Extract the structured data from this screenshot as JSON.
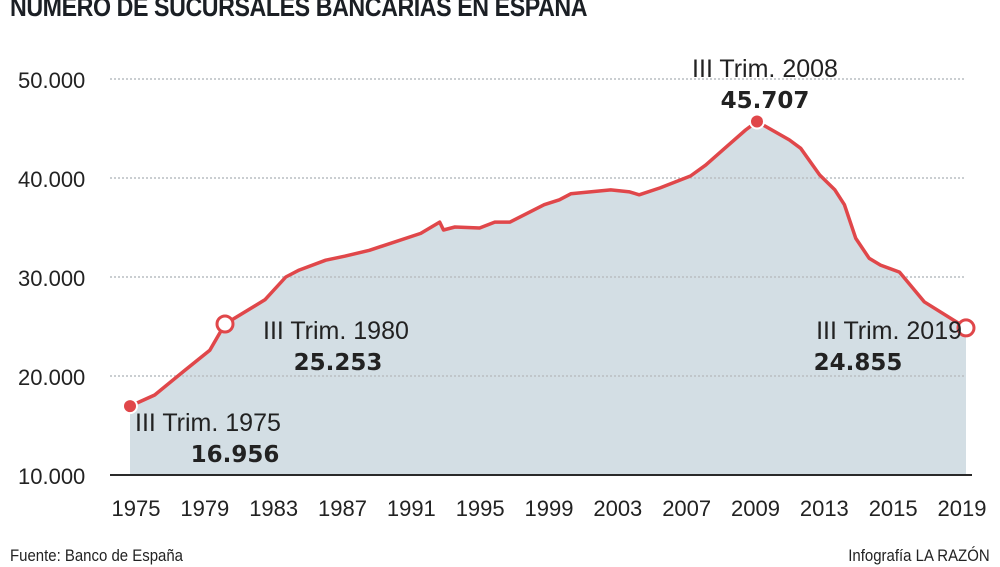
{
  "chart_data": {
    "type": "area",
    "title": "NÚMERO DE SUCURSALES BANCARIAS EN ESPAÑA",
    "xlabel": "",
    "ylabel": "",
    "ylim": [
      10000,
      50000
    ],
    "yticks": [
      "50.000",
      "40.000",
      "30.000",
      "20.000",
      "10.000"
    ],
    "ytick_values": [
      50000,
      40000,
      30000,
      20000,
      10000
    ],
    "xticks": [
      "1975",
      "1979",
      "1983",
      "1987",
      "1991",
      "1995",
      "1999",
      "2003",
      "2007",
      "2009",
      "2013",
      "2015",
      "2019"
    ],
    "grid": true,
    "colors": {
      "line": "#e0474a",
      "fill": "#d3dee4",
      "axis": "#2a2a2a",
      "grid": "#b9bec2"
    },
    "series": [
      {
        "name": "Sucursales",
        "x": [
          1975.6,
          1976.9,
          1978.5,
          1979.8,
          1980.6,
          1982.7,
          1983.8,
          1984.5,
          1985.9,
          1986.9,
          1988.2,
          1990.9,
          1991.9,
          1992.1,
          1992.7,
          1994.0,
          1994.8,
          1995.6,
          1997.4,
          1998.2,
          1998.8,
          2000.9,
          2001.9,
          2002.4,
          2003.5,
          2005.1,
          2005.9,
          2006.9,
          2008.0,
          2008.6,
          2010.3,
          2010.9,
          2011.9,
          2012.7,
          2013.2,
          2013.8,
          2014.5,
          2015.1,
          2016.1,
          2017.4,
          2019.6
        ],
        "values": [
          16956,
          18080,
          20600,
          22600,
          25253,
          27700,
          30000,
          30700,
          31700,
          32100,
          32700,
          34400,
          35550,
          34750,
          35050,
          34950,
          35550,
          35550,
          37300,
          37800,
          38400,
          38800,
          38600,
          38300,
          39000,
          40200,
          41300,
          43000,
          44850,
          45707,
          43850,
          43000,
          40300,
          38800,
          37300,
          33900,
          31900,
          31200,
          30500,
          27500,
          24855
        ]
      }
    ],
    "annotations": [
      {
        "label": "III Trim. 1975",
        "value": "16.956",
        "x": 1975.6,
        "y": 16956,
        "marker": "filled"
      },
      {
        "label": "III Trim. 1980",
        "value": "25.253",
        "x": 1980.6,
        "y": 25253,
        "marker": "hollow"
      },
      {
        "label": "III Trim. 2008",
        "value": "45.707",
        "x": 2008.6,
        "y": 45707,
        "marker": "filled"
      },
      {
        "label": "III Trim. 2019",
        "value": "24.855",
        "x": 2019.6,
        "y": 24855,
        "marker": "hollow"
      }
    ]
  },
  "footer": {
    "source": "Fuente: Banco de España",
    "credit": "Infografía LA RAZÓN"
  }
}
